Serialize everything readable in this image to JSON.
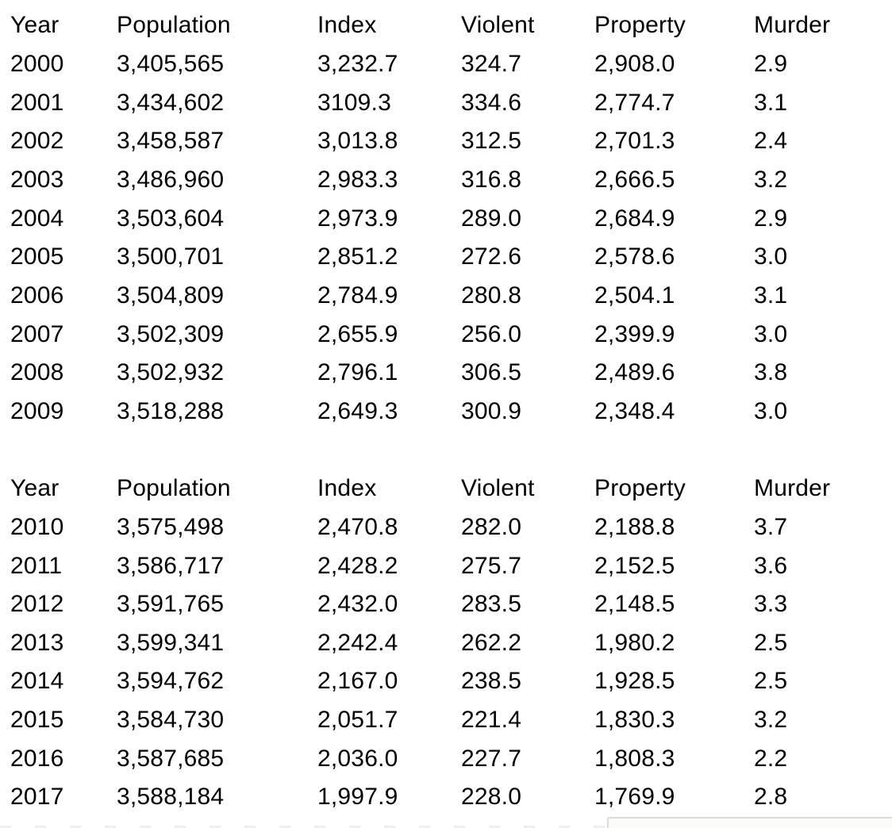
{
  "page": {
    "background_color": "#ffffff",
    "text_color": "#000000"
  },
  "tables": [
    {
      "columns": [
        "Year",
        "Population",
        "Index",
        "Violent",
        "Property",
        "Murder"
      ],
      "rows": [
        [
          "2000",
          "3,405,565",
          "3,232.7",
          "324.7",
          "2,908.0",
          "2.9"
        ],
        [
          "2001",
          "3,434,602",
          "3109.3",
          "334.6",
          "2,774.7",
          "3.1"
        ],
        [
          "2002",
          "3,458,587",
          "3,013.8",
          "312.5",
          "2,701.3",
          "2.4"
        ],
        [
          "2003",
          "3,486,960",
          "2,983.3",
          "316.8",
          "2,666.5",
          "3.2"
        ],
        [
          "2004",
          "3,503,604",
          "2,973.9",
          "289.0",
          "2,684.9",
          "2.9"
        ],
        [
          "2005",
          "3,500,701",
          "2,851.2",
          "272.6",
          "2,578.6",
          "3.0"
        ],
        [
          "2006",
          "3,504,809",
          "2,784.9",
          "280.8",
          "2,504.1",
          "3.1"
        ],
        [
          "2007",
          "3,502,309",
          "2,655.9",
          "256.0",
          "2,399.9",
          "3.0"
        ],
        [
          "2008",
          "3,502,932",
          "2,796.1",
          "306.5",
          "2,489.6",
          "3.8"
        ],
        [
          "2009",
          "3,518,288",
          "2,649.3",
          "300.9",
          "2,348.4",
          "3.0"
        ]
      ]
    },
    {
      "columns": [
        "Year",
        "Population",
        "Index",
        "Violent",
        "Property",
        "Murder"
      ],
      "rows": [
        [
          "2010",
          "3,575,498",
          "2,470.8",
          "282.0",
          "2,188.8",
          "3.7"
        ],
        [
          "2011",
          "3,586,717",
          "2,428.2",
          "275.7",
          "2,152.5",
          "3.6"
        ],
        [
          "2012",
          "3,591,765",
          "2,432.0",
          "283.5",
          "2,148.5",
          "3.3"
        ],
        [
          "2013",
          "3,599,341",
          "2,242.4",
          "262.2",
          "1,980.2",
          "2.5"
        ],
        [
          "2014",
          "3,594,762",
          "2,167.0",
          "238.5",
          "1,928.5",
          "2.5"
        ],
        [
          "2015",
          "3,584,730",
          "2,051.7",
          "221.4",
          "1,830.3",
          "3.2"
        ],
        [
          "2016",
          "3,587,685",
          "2,036.0",
          "227.7",
          "1,808.3",
          "2.2"
        ],
        [
          "2017",
          "3,588,184",
          "1,997.9",
          "228.0",
          "1,769.9",
          "2.8"
        ]
      ]
    }
  ],
  "cutoff_box": {
    "border_color": "#dcdcd3",
    "fill_color": "#fbfbf8"
  }
}
